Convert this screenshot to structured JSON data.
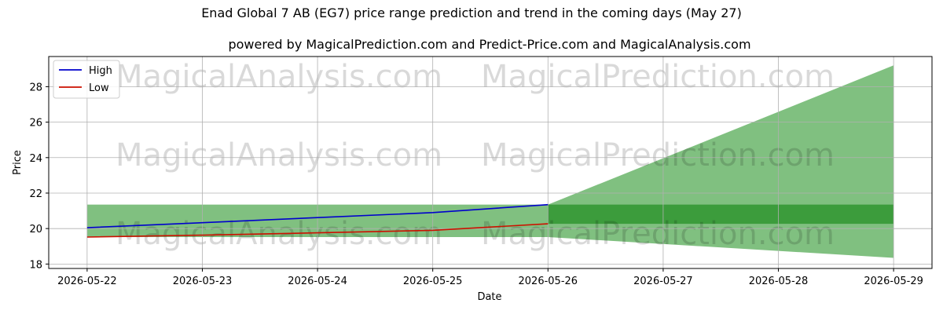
{
  "chart_data": {
    "type": "line",
    "title": "Enad Global 7 AB (EG7) price range prediction and trend in the coming days (May 27)",
    "subtitle": "powered by MagicalPrediction.com and Predict-Price.com and MagicalAnalysis.com",
    "xlabel": "Date",
    "ylabel": "Price",
    "x": [
      "2026-05-22",
      "2026-05-23",
      "2026-05-24",
      "2026-05-25",
      "2026-05-26",
      "2026-05-27",
      "2026-05-28",
      "2026-05-29"
    ],
    "xlim": [
      "2026-05-21 16:00",
      "2026-05-29 08:00"
    ],
    "ylim": [
      17.75,
      29.7
    ],
    "yticks": [
      18,
      20,
      22,
      24,
      26,
      28
    ],
    "grid": true,
    "legend_position": "top-left",
    "series": [
      {
        "name": "High",
        "color": "#0000cc",
        "x": [
          "2026-05-22",
          "2026-05-23",
          "2026-05-24",
          "2026-05-25",
          "2026-05-26"
        ],
        "values": [
          20.05,
          20.33,
          20.62,
          20.9,
          21.35
        ]
      },
      {
        "name": "Low",
        "color": "#cc1100",
        "x": [
          "2026-05-22",
          "2026-05-23",
          "2026-05-24",
          "2026-05-25",
          "2026-05-26"
        ],
        "values": [
          19.52,
          19.63,
          19.76,
          19.9,
          20.27
        ]
      }
    ],
    "bands": [
      {
        "color": "#80c080",
        "x": [
          "2026-05-22",
          "2026-05-26"
        ],
        "upper": [
          21.35,
          21.35
        ],
        "lower": [
          19.52,
          19.52
        ]
      },
      {
        "color": "#80c080",
        "x": [
          "2026-05-26",
          "2026-05-29"
        ],
        "upper": [
          21.35,
          29.2
        ],
        "lower": [
          19.52,
          18.35
        ]
      },
      {
        "color": "#3c9c3c",
        "x": [
          "2026-05-26",
          "2026-05-29"
        ],
        "upper": [
          21.35,
          21.35
        ],
        "lower": [
          20.27,
          20.27
        ]
      }
    ],
    "watermarks": [
      "MagicalAnalysis.com",
      "MagicalPrediction.com"
    ]
  }
}
